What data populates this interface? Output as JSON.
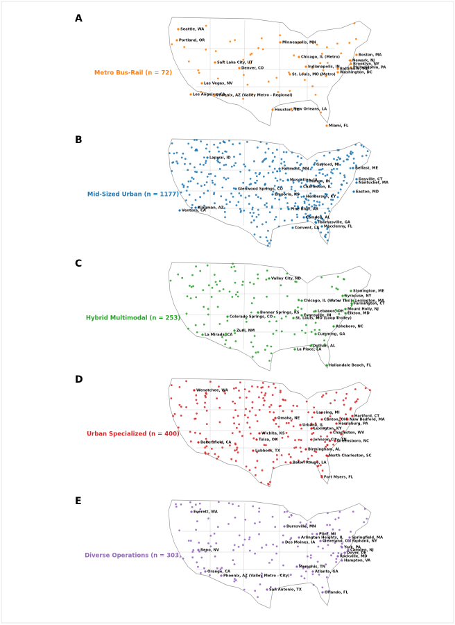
{
  "panels": [
    {
      "letter": "A",
      "label": "Metro Bus-Rail (n = 72)",
      "color": "#ff7f0e",
      "cities": [
        "Seattle, WA",
        "Portland, OR",
        "Minneapolis, MN",
        "Boston, MA",
        "Chicago, IL (Metro)",
        "Newark, NJ",
        "Brooklyn, NY",
        "Salt Lake City, UT",
        "Denver, CO",
        "Indianapolis, IN",
        "Philadelphia, PA",
        "Baltimore, MD",
        "Washington, DC",
        "St. Louis, MO (Metro)",
        "Las Vegas, NV",
        "Los Angeles, CA",
        "Phoenix, AZ (Valley Metro - Regional)",
        "Houston, TX",
        "New Orleans, LA",
        "Miami, FL"
      ]
    },
    {
      "letter": "B",
      "label": "Mid-Sized Urban (n = 1177)",
      "color": "#1f77b4",
      "cities": [
        "Lapwai, ID",
        "Gaylord, MI",
        "Fairmont, MN",
        "Belfast, ME",
        "Muscatine, IA",
        "Monon, IN",
        "Dayville, CT",
        "Nantucket, MA",
        "Charleston, IL",
        "Glenwood Springs, CO",
        "Emporia, KS",
        "Henderson, KY",
        "Easton, MD",
        "Kingman, AZ",
        "Ventura, CA",
        "Pine Bluff, AR",
        "Camden, AL",
        "Thomasville, GA",
        "Macclenny, FL",
        "Convent, LA"
      ]
    },
    {
      "letter": "C",
      "label": "Hybrid Multimodal (n = 253)",
      "color": "#2ca02c",
      "cities": [
        "Valley City, ND",
        "Stonington, ME",
        "Syracuse, NY",
        "Lexington, MA",
        "Farmington, CT",
        "Chicago, IL (Water Taxi)",
        "Mount Holly, NJ",
        "Lebanon, OH",
        "Bonner Springs, KS",
        "Elkton, MD",
        "Evansville, IN",
        "Colorado Springs, CO",
        "St. Louis, MO (Loop Trolley)",
        "Asheboro, NC",
        "Zuni, NM",
        "La Mirada, CA",
        "Cumming, GA",
        "Dothan, AL",
        "La Place, LA",
        "Hallandale Beach, FL"
      ]
    },
    {
      "letter": "D",
      "label": "Urban Specialized (n = 400)",
      "color": "#d62728",
      "cities": [
        "Wenatchee, WA",
        "Lansing, MI",
        "Hartford, CT",
        "Omaha, NE",
        "Canton, OH",
        "New Bedford, MA",
        "Urbana, IL",
        "Harrisburg, PA",
        "Lexington, KY",
        "Wichita, KS",
        "Charleston, WV",
        "Tulsa, OK",
        "Johnson City, TN",
        "Greensboro, NC",
        "Bakersfield, CA",
        "Lubbock, TX",
        "Birmingham, AL",
        "North Charleston, SC",
        "Baton Rouge, LA",
        "Fort Myers, FL"
      ]
    },
    {
      "letter": "E",
      "label": "Diverse Operations (n = 303)",
      "color": "#9467bd",
      "cities": [
        "Everett, WA",
        "Burnsville, MN",
        "Flint, MI",
        "Arlington Heights, IL",
        "Springfield, MA",
        "Des Moines, IA",
        "Cleveland, OH",
        "Yaphank, NY",
        "York, PA",
        "Camden, NJ",
        "Dover, DE",
        "Reno, NV",
        "Rockville, MD",
        "Hampton, VA",
        "Memphis, TN",
        "Atlanta, GA",
        "Orange, CA",
        "Phoenix, AZ (Valley Metro - City)",
        "San Antonio, TX",
        "Orlando, FL"
      ]
    }
  ]
}
